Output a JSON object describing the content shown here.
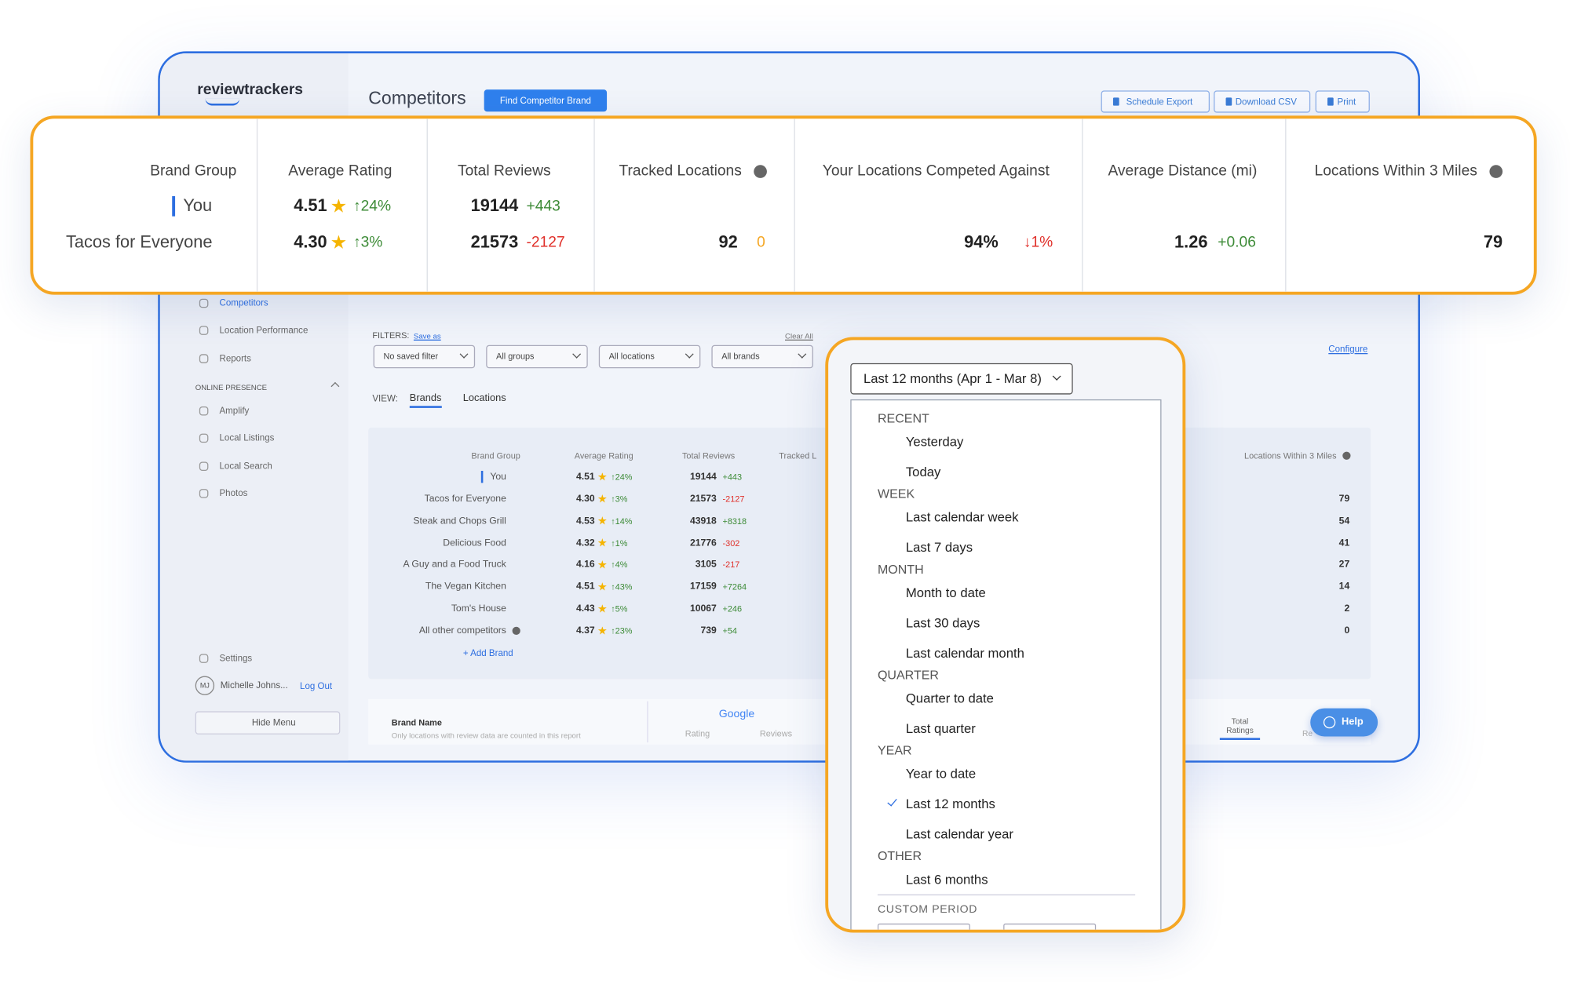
{
  "app": {
    "logo": "reviewtrackers",
    "title": "Competitors",
    "find_button": "Find Competitor Brand",
    "actions": [
      "Schedule Export",
      "Download CSV",
      "Print"
    ]
  },
  "sidebar": {
    "nav": [
      "Competitors",
      "Location Performance",
      "Reports"
    ],
    "section": "ONLINE PRESENCE",
    "presence": [
      "Amplify",
      "Local Listings",
      "Local Search",
      "Photos"
    ],
    "settings": "Settings",
    "initials": "MJ",
    "user": "Michelle Johns...",
    "logout": "Log Out",
    "hide_menu": "Hide Menu"
  },
  "filters": {
    "label": "FILTERS:",
    "save_as": "Save as",
    "clear_all": "Clear All",
    "selects": [
      "No saved filter",
      "All groups",
      "All locations",
      "All brands"
    ],
    "configure": "Configure"
  },
  "view": {
    "label": "VIEW:",
    "tabs": [
      "Brands",
      "Locations"
    ]
  },
  "table": {
    "headers": [
      "Brand Group",
      "Average Rating",
      "Total Reviews",
      "Tracked L",
      "Locations Within 3 Miles"
    ],
    "rows": [
      {
        "name": "You",
        "rating": "4.51",
        "rating_change": "↑24%",
        "reviews": "19144",
        "reviews_change": "+443"
      },
      {
        "name": "Tacos for Everyone",
        "rating": "4.30",
        "rating_change": "↑3%",
        "reviews": "21573",
        "reviews_change": "-2127",
        "within_3mi": "79"
      },
      {
        "name": "Steak and Chops Grill",
        "rating": "4.53",
        "rating_change": "↑14%",
        "reviews": "43918",
        "reviews_change": "+8318",
        "within_3mi": "54"
      },
      {
        "name": "Delicious Food",
        "rating": "4.32",
        "rating_change": "↑1%",
        "reviews": "21776",
        "reviews_change": "-302",
        "within_3mi": "41"
      },
      {
        "name": "A Guy and a Food Truck",
        "rating": "4.16",
        "rating_change": "↑4%",
        "reviews": "3105",
        "reviews_change": "-217",
        "within_3mi": "27"
      },
      {
        "name": "The Vegan Kitchen",
        "rating": "4.51",
        "rating_change": "↑43%",
        "reviews": "17159",
        "reviews_change": "+7264",
        "within_3mi": "14"
      },
      {
        "name": "Tom's House",
        "rating": "4.43",
        "rating_change": "↑5%",
        "reviews": "10067",
        "reviews_change": "+246",
        "within_3mi": "2"
      },
      {
        "name": "All other competitors",
        "rating": "4.37",
        "rating_change": "↑23%",
        "reviews": "739",
        "reviews_change": "+54",
        "within_3mi": "0"
      }
    ],
    "add_brand": "+ Add Brand"
  },
  "bottom": {
    "brand_name": "Brand Name",
    "note": "Only locations with review data are counted in this report",
    "source": "Google",
    "source_cols": [
      "Rating",
      "Reviews"
    ],
    "total_ratings": "Total Ratings",
    "clipped_col": "Re",
    "help": "Help"
  },
  "summary": {
    "headers": [
      "Brand Group",
      "Average Rating",
      "Total Reviews",
      "Tracked Locations",
      "Your Locations Competed Against",
      "Average Distance (mi)",
      "Locations Within 3 Miles"
    ],
    "rows": [
      {
        "group": "You",
        "rating": "4.51",
        "rating_change": "↑24%",
        "reviews": "19144",
        "reviews_change": "+443"
      },
      {
        "group": "Tacos for Everyone",
        "rating": "4.30",
        "rating_change": "↑3%",
        "reviews": "21573",
        "reviews_change": "-2127",
        "tracked": "92",
        "tracked_change": "0",
        "competed": "94%",
        "competed_change": "↓1%",
        "distance": "1.26",
        "distance_change": "+0.06",
        "within_3mi": "79"
      }
    ]
  },
  "date_range": {
    "button": "Last 12 months (Apr 1 - Mar 8)",
    "groups": [
      {
        "label": "RECENT",
        "items": [
          {
            "label": "Yesterday"
          },
          {
            "label": "Today"
          }
        ]
      },
      {
        "label": "WEEK",
        "items": [
          {
            "label": "Last calendar week"
          },
          {
            "label": "Last 7 days"
          }
        ]
      },
      {
        "label": "MONTH",
        "items": [
          {
            "label": "Month to date"
          },
          {
            "label": "Last 30 days"
          },
          {
            "label": "Last calendar month"
          }
        ]
      },
      {
        "label": "QUARTER",
        "items": [
          {
            "label": "Quarter to date"
          },
          {
            "label": "Last quarter"
          }
        ]
      },
      {
        "label": "YEAR",
        "items": [
          {
            "label": "Year to date"
          },
          {
            "label": "Last 12 months",
            "checked": true
          },
          {
            "label": "Last calendar year"
          }
        ]
      },
      {
        "label": "OTHER",
        "items": [
          {
            "label": "Last 6 months"
          }
        ]
      }
    ],
    "custom_period": "CUSTOM PERIOD"
  }
}
